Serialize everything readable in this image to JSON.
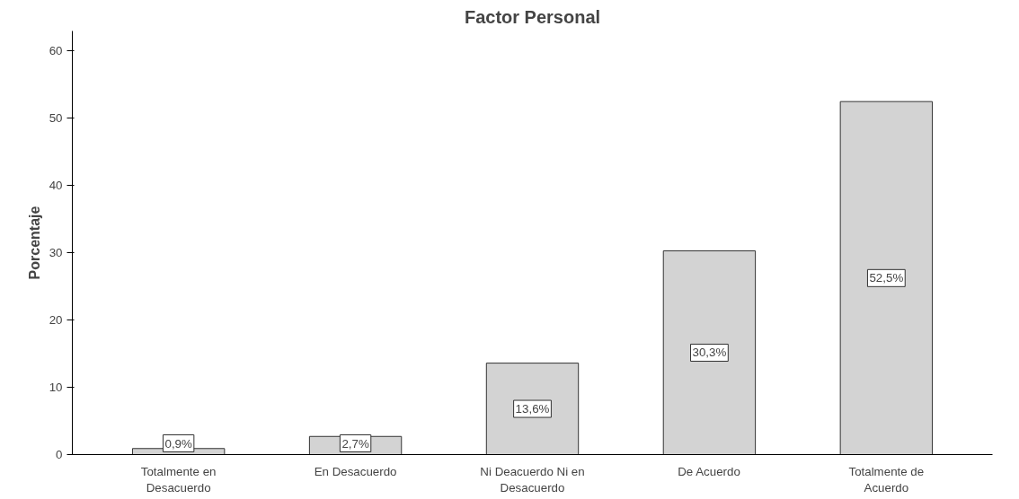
{
  "chart_data": {
    "type": "bar",
    "title": "Factor Personal",
    "ylabel": "Porcentaje",
    "categories": [
      "Totalmente en Desacuerdo",
      "En Desacuerdo",
      "Ni Deacuerdo Ni en Desacuerdo",
      "De Acuerdo",
      "Totalmente de Acuerdo"
    ],
    "values": [
      0.9,
      2.7,
      13.6,
      30.3,
      52.5
    ],
    "value_labels": [
      "0,9%",
      "2,7%",
      "13,6%",
      "30,3%",
      "52,5%"
    ],
    "color": "#d3d3d3",
    "ylim": [
      0,
      63
    ],
    "yticks": [
      0,
      10,
      20,
      30,
      40,
      50,
      60
    ],
    "grid": false
  }
}
